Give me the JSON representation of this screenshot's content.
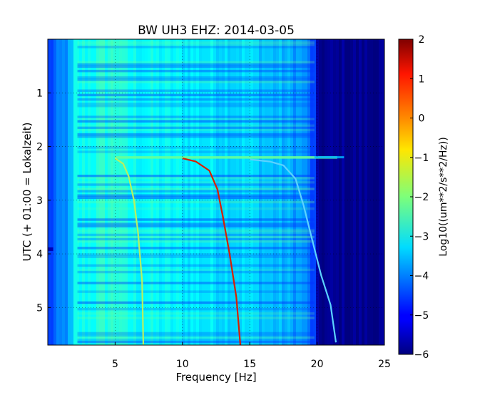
{
  "chart_data": {
    "type": "heatmap",
    "title": "BW UH3 EHZ: 2014-03-05",
    "xlabel": "Frequency [Hz]",
    "ylabel": "UTC (+ 01:00 = Lokalzeit)",
    "xlim": [
      0,
      25
    ],
    "ylim": [
      5.7,
      0
    ],
    "x_ticks": [
      5,
      10,
      15,
      20,
      25
    ],
    "y_ticks": [
      1,
      2,
      3,
      4,
      5
    ],
    "grid": true,
    "colormap": "jet",
    "colorbar": {
      "label": "Log10((um**2/s**2/Hz))",
      "range": [
        -6,
        2
      ],
      "ticks": [
        2,
        1,
        0,
        -1,
        -2,
        -3,
        -4,
        -5,
        -6
      ]
    },
    "event_start_hour": 2.2,
    "lines": [
      {
        "points": [
          [
            5.0,
            2.22
          ],
          [
            5.6,
            2.32
          ],
          [
            6.0,
            2.55
          ],
          [
            6.4,
            3.0
          ],
          [
            6.7,
            3.6
          ],
          [
            7.0,
            4.5
          ],
          [
            7.1,
            5.7
          ]
        ],
        "color": "#b8f060"
      },
      {
        "points": [
          [
            10.0,
            2.22
          ],
          [
            11.0,
            2.28
          ],
          [
            12.0,
            2.45
          ],
          [
            12.6,
            2.8
          ],
          [
            13.0,
            3.3
          ],
          [
            13.5,
            4.0
          ],
          [
            14.0,
            4.8
          ],
          [
            14.3,
            5.7
          ]
        ],
        "color": "#d72000"
      },
      {
        "points": [
          [
            15.0,
            2.24
          ],
          [
            16.5,
            2.28
          ],
          [
            17.5,
            2.35
          ],
          [
            18.4,
            2.6
          ],
          [
            19.0,
            3.1
          ],
          [
            19.6,
            3.7
          ],
          [
            20.3,
            4.4
          ],
          [
            21.0,
            4.95
          ],
          [
            21.4,
            5.65
          ]
        ],
        "color": "#5cd2ff"
      }
    ]
  }
}
